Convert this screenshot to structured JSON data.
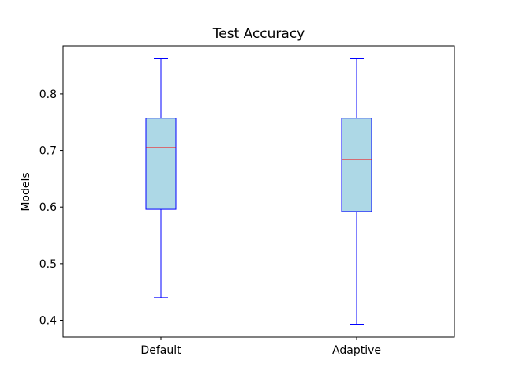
{
  "chart_data": {
    "type": "box",
    "title": "Test Accuracy",
    "xlabel": "",
    "ylabel": "Models",
    "categories": [
      "Default",
      "Adaptive"
    ],
    "boxes": [
      {
        "category": "Default",
        "whisker_low": 0.44,
        "q1": 0.596,
        "median": 0.705,
        "q3": 0.757,
        "whisker_high": 0.862
      },
      {
        "category": "Adaptive",
        "whisker_low": 0.393,
        "q1": 0.592,
        "median": 0.684,
        "q3": 0.757,
        "whisker_high": 0.862
      }
    ],
    "ylim": [
      0.37,
      0.885
    ],
    "yticks": [
      0.4,
      0.5,
      0.6,
      0.7,
      0.8
    ],
    "ytick_labels": [
      "0.4",
      "0.5",
      "0.6",
      "0.7",
      "0.8"
    ],
    "grid": false,
    "colors": {
      "box_fill": "#add8e6",
      "box_edge": "#0000ff",
      "whisker": "#0000ff",
      "median": "#ff0000",
      "axes": "#000000"
    }
  }
}
